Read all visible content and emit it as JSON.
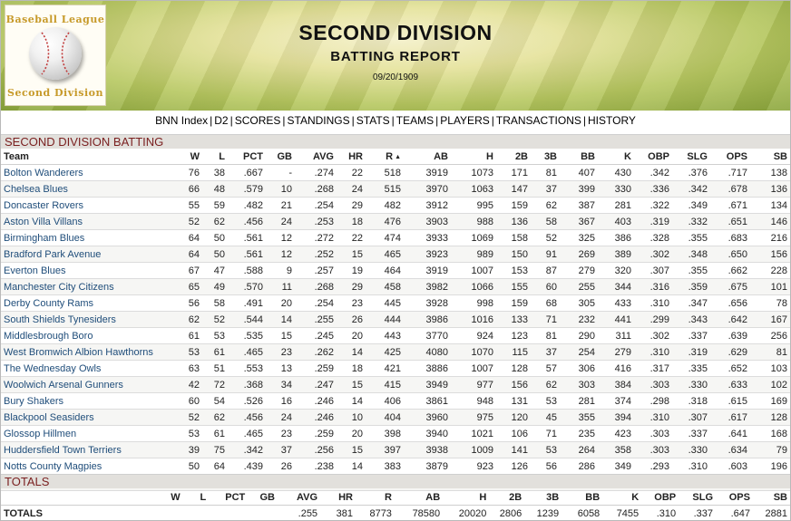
{
  "logo": {
    "top_text": "Baseball League",
    "bottom_text": "Second Division",
    "icon": "baseball-icon"
  },
  "header": {
    "title": "SECOND DIVISION",
    "subtitle": "BATTING REPORT",
    "date": "09/20/1909"
  },
  "nav": [
    "BNN Index",
    "D2",
    "SCORES",
    "STANDINGS",
    "STATS",
    "TEAMS",
    "PLAYERS",
    "TRANSACTIONS",
    "HISTORY"
  ],
  "batting": {
    "section_title": "SECOND DIVISION BATTING",
    "columns": [
      "Team",
      "W",
      "L",
      "PCT",
      "GB",
      "AVG",
      "HR",
      "R",
      "AB",
      "H",
      "2B",
      "3B",
      "BB",
      "K",
      "OBP",
      "SLG",
      "OPS",
      "SB"
    ],
    "sort_indicator": "▲",
    "rows": [
      [
        "Bolton Wanderers",
        "76",
        "38",
        ".667",
        "-",
        ".274",
        "22",
        "518",
        "3919",
        "1073",
        "171",
        "81",
        "407",
        "430",
        ".342",
        ".376",
        ".717",
        "138"
      ],
      [
        "Chelsea Blues",
        "66",
        "48",
        ".579",
        "10",
        ".268",
        "24",
        "515",
        "3970",
        "1063",
        "147",
        "37",
        "399",
        "330",
        ".336",
        ".342",
        ".678",
        "136"
      ],
      [
        "Doncaster Rovers",
        "55",
        "59",
        ".482",
        "21",
        ".254",
        "29",
        "482",
        "3912",
        "995",
        "159",
        "62",
        "387",
        "281",
        ".322",
        ".349",
        ".671",
        "134"
      ],
      [
        "Aston Villa Villans",
        "52",
        "62",
        ".456",
        "24",
        ".253",
        "18",
        "476",
        "3903",
        "988",
        "136",
        "58",
        "367",
        "403",
        ".319",
        ".332",
        ".651",
        "146"
      ],
      [
        "Birmingham Blues",
        "64",
        "50",
        ".561",
        "12",
        ".272",
        "22",
        "474",
        "3933",
        "1069",
        "158",
        "52",
        "325",
        "386",
        ".328",
        ".355",
        ".683",
        "216"
      ],
      [
        "Bradford Park Avenue",
        "64",
        "50",
        ".561",
        "12",
        ".252",
        "15",
        "465",
        "3923",
        "989",
        "150",
        "91",
        "269",
        "389",
        ".302",
        ".348",
        ".650",
        "156"
      ],
      [
        "Everton Blues",
        "67",
        "47",
        ".588",
        "9",
        ".257",
        "19",
        "464",
        "3919",
        "1007",
        "153",
        "87",
        "279",
        "320",
        ".307",
        ".355",
        ".662",
        "228"
      ],
      [
        "Manchester City Citizens",
        "65",
        "49",
        ".570",
        "11",
        ".268",
        "29",
        "458",
        "3982",
        "1066",
        "155",
        "60",
        "255",
        "344",
        ".316",
        ".359",
        ".675",
        "101"
      ],
      [
        "Derby County Rams",
        "56",
        "58",
        ".491",
        "20",
        ".254",
        "23",
        "445",
        "3928",
        "998",
        "159",
        "68",
        "305",
        "433",
        ".310",
        ".347",
        ".656",
        "78"
      ],
      [
        "South Shields Tynesiders",
        "62",
        "52",
        ".544",
        "14",
        ".255",
        "26",
        "444",
        "3986",
        "1016",
        "133",
        "71",
        "232",
        "441",
        ".299",
        ".343",
        ".642",
        "167"
      ],
      [
        "Middlesbrough Boro",
        "61",
        "53",
        ".535",
        "15",
        ".245",
        "20",
        "443",
        "3770",
        "924",
        "123",
        "81",
        "290",
        "311",
        ".302",
        ".337",
        ".639",
        "256"
      ],
      [
        "West Bromwich Albion Hawthorns",
        "53",
        "61",
        ".465",
        "23",
        ".262",
        "14",
        "425",
        "4080",
        "1070",
        "115",
        "37",
        "254",
        "279",
        ".310",
        ".319",
        ".629",
        "81"
      ],
      [
        "The Wednesday Owls",
        "63",
        "51",
        ".553",
        "13",
        ".259",
        "18",
        "421",
        "3886",
        "1007",
        "128",
        "57",
        "306",
        "416",
        ".317",
        ".335",
        ".652",
        "103"
      ],
      [
        "Woolwich Arsenal Gunners",
        "42",
        "72",
        ".368",
        "34",
        ".247",
        "15",
        "415",
        "3949",
        "977",
        "156",
        "62",
        "303",
        "384",
        ".303",
        ".330",
        ".633",
        "102"
      ],
      [
        "Bury Shakers",
        "60",
        "54",
        ".526",
        "16",
        ".246",
        "14",
        "406",
        "3861",
        "948",
        "131",
        "53",
        "281",
        "374",
        ".298",
        ".318",
        ".615",
        "169"
      ],
      [
        "Blackpool Seasiders",
        "52",
        "62",
        ".456",
        "24",
        ".246",
        "10",
        "404",
        "3960",
        "975",
        "120",
        "45",
        "355",
        "394",
        ".310",
        ".307",
        ".617",
        "128"
      ],
      [
        "Glossop Hillmen",
        "53",
        "61",
        ".465",
        "23",
        ".259",
        "20",
        "398",
        "3940",
        "1021",
        "106",
        "71",
        "235",
        "423",
        ".303",
        ".337",
        ".641",
        "168"
      ],
      [
        "Huddersfield Town Terriers",
        "39",
        "75",
        ".342",
        "37",
        ".256",
        "15",
        "397",
        "3938",
        "1009",
        "141",
        "53",
        "264",
        "358",
        ".303",
        ".330",
        ".634",
        "79"
      ],
      [
        "Notts County Magpies",
        "50",
        "64",
        ".439",
        "26",
        ".238",
        "14",
        "383",
        "3879",
        "923",
        "126",
        "56",
        "286",
        "349",
        ".293",
        ".310",
        ".603",
        "196"
      ],
      [
        "Preston North End Lilywhites",
        "40",
        "74",
        ".351",
        "36",
        ".229",
        "14",
        "340",
        "3942",
        "902",
        "139",
        "57",
        "259",
        "410",
        ".279",
        ".304",
        ".583",
        "99"
      ]
    ]
  },
  "totals": {
    "section_title": "TOTALS",
    "columns": [
      "",
      "W",
      "L",
      "PCT",
      "GB",
      "AVG",
      "HR",
      "R",
      "AB",
      "H",
      "2B",
      "3B",
      "BB",
      "K",
      "OBP",
      "SLG",
      "OPS",
      "SB"
    ],
    "row": [
      "TOTALS",
      "",
      "",
      "",
      "",
      ".255",
      "381",
      "8773",
      "78580",
      "20020",
      "2806",
      "1239",
      "6058",
      "7455",
      ".310",
      ".337",
      ".647",
      "2881"
    ]
  }
}
